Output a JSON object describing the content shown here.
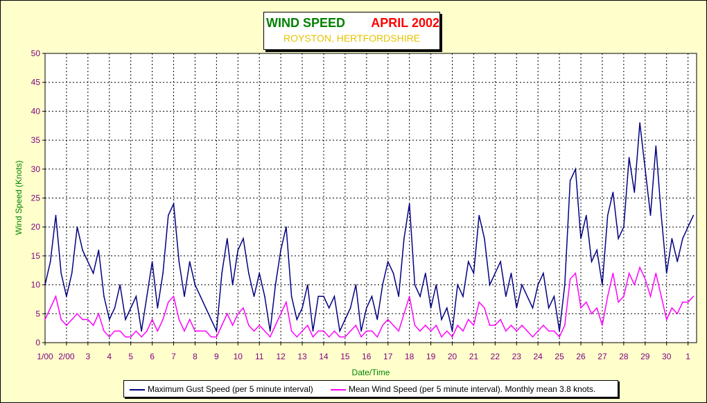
{
  "title": {
    "main": "WIND SPEED",
    "date": "APRIL 2002",
    "location": "ROYSTON, HERTFORDSHIRE"
  },
  "colors": {
    "gust": "#000080",
    "mean": "#ff00ff",
    "grid": "#000000",
    "tick_text": "#800080",
    "axis_title": "#008000",
    "background": "#ffffcc"
  },
  "chart_data": {
    "type": "line",
    "xlabel": "Date/Time",
    "ylabel": "Wind Speed (Knots)",
    "ylim": [
      0,
      50
    ],
    "yticks": [
      0,
      5,
      10,
      15,
      20,
      25,
      30,
      35,
      40,
      45,
      50
    ],
    "xlim": [
      0,
      30.4
    ],
    "xticks": [
      {
        "x": 0,
        "label": "1/00"
      },
      {
        "x": 1,
        "label": "2/00"
      },
      {
        "x": 2,
        "label": "3"
      },
      {
        "x": 3,
        "label": "4"
      },
      {
        "x": 4,
        "label": "5"
      },
      {
        "x": 5,
        "label": "6"
      },
      {
        "x": 6,
        "label": "7"
      },
      {
        "x": 7,
        "label": "8"
      },
      {
        "x": 8,
        "label": "9"
      },
      {
        "x": 9,
        "label": "10"
      },
      {
        "x": 10,
        "label": "11"
      },
      {
        "x": 11,
        "label": "12"
      },
      {
        "x": 12,
        "label": "13"
      },
      {
        "x": 13,
        "label": "14"
      },
      {
        "x": 14,
        "label": "15"
      },
      {
        "x": 15,
        "label": "16"
      },
      {
        "x": 16,
        "label": "17"
      },
      {
        "x": 17,
        "label": "18"
      },
      {
        "x": 18,
        "label": "19"
      },
      {
        "x": 19,
        "label": "20"
      },
      {
        "x": 20,
        "label": "21"
      },
      {
        "x": 21,
        "label": "22"
      },
      {
        "x": 22,
        "label": "23"
      },
      {
        "x": 23,
        "label": "24"
      },
      {
        "x": 24,
        "label": "25"
      },
      {
        "x": 25,
        "label": "26"
      },
      {
        "x": 26,
        "label": "27"
      },
      {
        "x": 27,
        "label": "28"
      },
      {
        "x": 28,
        "label": "29"
      },
      {
        "x": 29,
        "label": "30"
      },
      {
        "x": 30,
        "label": "1"
      }
    ],
    "grid": true,
    "legend_position": "bottom",
    "series": [
      {
        "name": "Maximum Gust Speed (per 5 minute interval)",
        "x": [
          0,
          0.25,
          0.5,
          0.75,
          1,
          1.25,
          1.5,
          1.75,
          2,
          2.25,
          2.5,
          2.75,
          3,
          3.25,
          3.5,
          3.75,
          4,
          4.25,
          4.5,
          4.75,
          5,
          5.25,
          5.5,
          5.75,
          6,
          6.25,
          6.5,
          6.75,
          7,
          7.25,
          7.5,
          7.75,
          8,
          8.25,
          8.5,
          8.75,
          9,
          9.25,
          9.5,
          9.75,
          10,
          10.25,
          10.5,
          10.75,
          11,
          11.25,
          11.5,
          11.75,
          12,
          12.25,
          12.5,
          12.75,
          13,
          13.25,
          13.5,
          13.75,
          14,
          14.25,
          14.5,
          14.75,
          15,
          15.25,
          15.5,
          15.75,
          16,
          16.25,
          16.5,
          16.75,
          17,
          17.25,
          17.5,
          17.75,
          18,
          18.25,
          18.5,
          18.75,
          19,
          19.25,
          19.5,
          19.75,
          20,
          20.25,
          20.5,
          20.75,
          21,
          21.25,
          21.5,
          21.75,
          22,
          22.25,
          22.5,
          22.75,
          23,
          23.25,
          23.5,
          23.75,
          24,
          24.25,
          24.5,
          24.75,
          25,
          25.25,
          25.5,
          25.75,
          26,
          26.25,
          26.5,
          26.75,
          27,
          27.25,
          27.5,
          27.75,
          28,
          28.25,
          28.5,
          28.75,
          29,
          29.25,
          29.5,
          29.75,
          30,
          30.25
        ],
        "values": [
          10,
          14,
          22,
          12,
          8,
          12,
          20,
          16,
          14,
          12,
          16,
          8,
          4,
          6,
          10,
          4,
          6,
          8,
          2,
          8,
          14,
          6,
          12,
          22,
          24,
          14,
          8,
          14,
          10,
          8,
          6,
          4,
          2,
          12,
          18,
          10,
          16,
          18,
          12,
          8,
          12,
          8,
          2,
          10,
          16,
          20,
          8,
          4,
          6,
          10,
          2,
          8,
          8,
          6,
          8,
          2,
          4,
          6,
          10,
          2,
          6,
          8,
          4,
          10,
          14,
          12,
          8,
          18,
          24,
          10,
          8,
          12,
          6,
          10,
          4,
          6,
          2,
          10,
          8,
          14,
          12,
          22,
          18,
          10,
          12,
          14,
          8,
          12,
          6,
          10,
          8,
          6,
          10,
          12,
          6,
          8,
          2,
          10,
          28,
          30,
          18,
          22,
          14,
          16,
          10,
          22,
          26,
          18,
          20,
          32,
          26,
          38,
          30,
          22,
          34,
          22,
          12,
          18,
          14,
          18,
          20,
          22
        ]
      },
      {
        "name": "Mean Wind Speed (per 5 minute interval). Monthly mean 3.8 knots.",
        "x": [
          0,
          0.25,
          0.5,
          0.75,
          1,
          1.25,
          1.5,
          1.75,
          2,
          2.25,
          2.5,
          2.75,
          3,
          3.25,
          3.5,
          3.75,
          4,
          4.25,
          4.5,
          4.75,
          5,
          5.25,
          5.5,
          5.75,
          6,
          6.25,
          6.5,
          6.75,
          7,
          7.25,
          7.5,
          7.75,
          8,
          8.25,
          8.5,
          8.75,
          9,
          9.25,
          9.5,
          9.75,
          10,
          10.25,
          10.5,
          10.75,
          11,
          11.25,
          11.5,
          11.75,
          12,
          12.25,
          12.5,
          12.75,
          13,
          13.25,
          13.5,
          13.75,
          14,
          14.25,
          14.5,
          14.75,
          15,
          15.25,
          15.5,
          15.75,
          16,
          16.25,
          16.5,
          16.75,
          17,
          17.25,
          17.5,
          17.75,
          18,
          18.25,
          18.5,
          18.75,
          19,
          19.25,
          19.5,
          19.75,
          20,
          20.25,
          20.5,
          20.75,
          21,
          21.25,
          21.5,
          21.75,
          22,
          22.25,
          22.5,
          22.75,
          23,
          23.25,
          23.5,
          23.75,
          24,
          24.25,
          24.5,
          24.75,
          25,
          25.25,
          25.5,
          25.75,
          26,
          26.25,
          26.5,
          26.75,
          27,
          27.25,
          27.5,
          27.75,
          28,
          28.25,
          28.5,
          28.75,
          29,
          29.25,
          29.5,
          29.75,
          30,
          30.25
        ],
        "values": [
          4,
          6,
          8,
          4,
          3,
          4,
          5,
          4,
          4,
          3,
          5,
          2,
          1,
          2,
          2,
          1,
          1,
          2,
          1,
          2,
          4,
          2,
          4,
          7,
          8,
          4,
          2,
          4,
          2,
          2,
          2,
          1,
          1,
          3,
          5,
          3,
          5,
          6,
          3,
          2,
          3,
          2,
          1,
          3,
          5,
          7,
          2,
          1,
          2,
          3,
          1,
          2,
          2,
          1,
          2,
          1,
          1,
          2,
          3,
          1,
          2,
          2,
          1,
          3,
          4,
          3,
          2,
          5,
          8,
          3,
          2,
          3,
          2,
          3,
          1,
          2,
          1,
          3,
          2,
          4,
          3,
          7,
          6,
          3,
          3,
          4,
          2,
          3,
          2,
          3,
          2,
          1,
          2,
          3,
          2,
          2,
          1,
          3,
          11,
          12,
          6,
          7,
          5,
          6,
          3,
          8,
          12,
          7,
          8,
          12,
          10,
          13,
          11,
          8,
          12,
          8,
          4,
          6,
          5,
          7,
          7,
          8
        ]
      }
    ]
  },
  "legend": {
    "gust_label": "Maximum Gust Speed (per 5 minute interval)",
    "mean_label": "Mean Wind Speed (per 5 minute interval). Monthly mean 3.8 knots."
  }
}
